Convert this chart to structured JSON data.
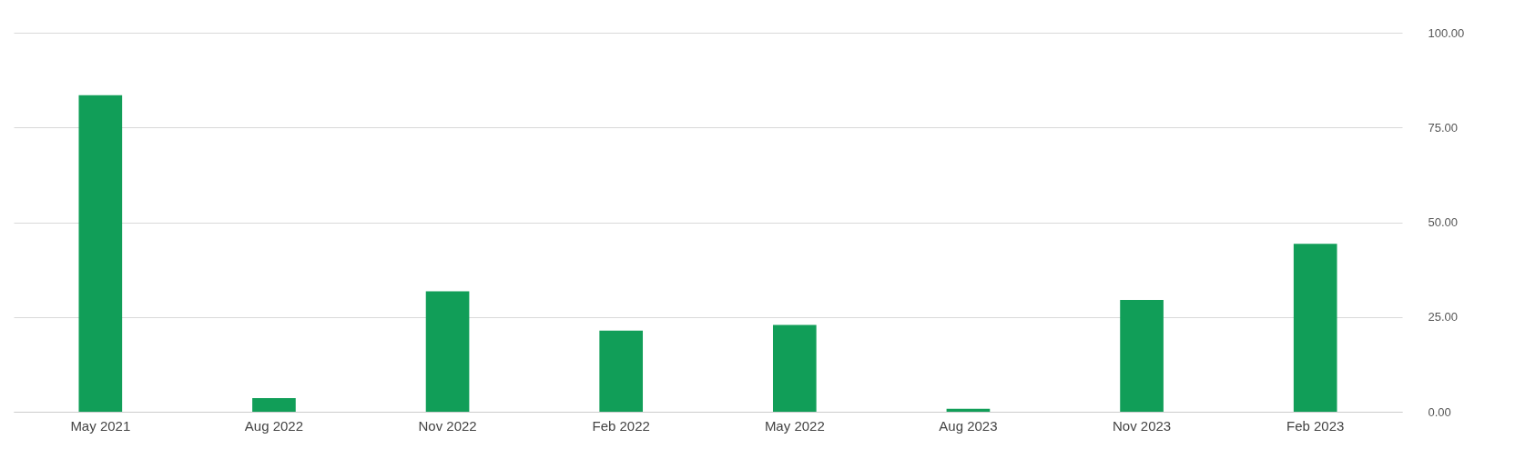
{
  "chart_data": {
    "type": "bar",
    "categories": [
      "May 2021",
      "Aug 2022",
      "Nov 2022",
      "Feb 2022",
      "May 2022",
      "Aug 2023",
      "Nov 2023",
      "Feb 2023"
    ],
    "values": [
      83.5,
      3.6,
      31.8,
      21.4,
      22.9,
      0.8,
      29.5,
      44.3
    ],
    "color": "#119e58",
    "ylim": [
      0,
      100
    ],
    "yticks": [
      {
        "value": 0,
        "label": "0.00"
      },
      {
        "value": 25,
        "label": "25.00"
      },
      {
        "value": 50,
        "label": "50.00"
      },
      {
        "value": 75,
        "label": "75.00"
      },
      {
        "value": 100,
        "label": "100.00"
      }
    ],
    "grid": "y"
  }
}
